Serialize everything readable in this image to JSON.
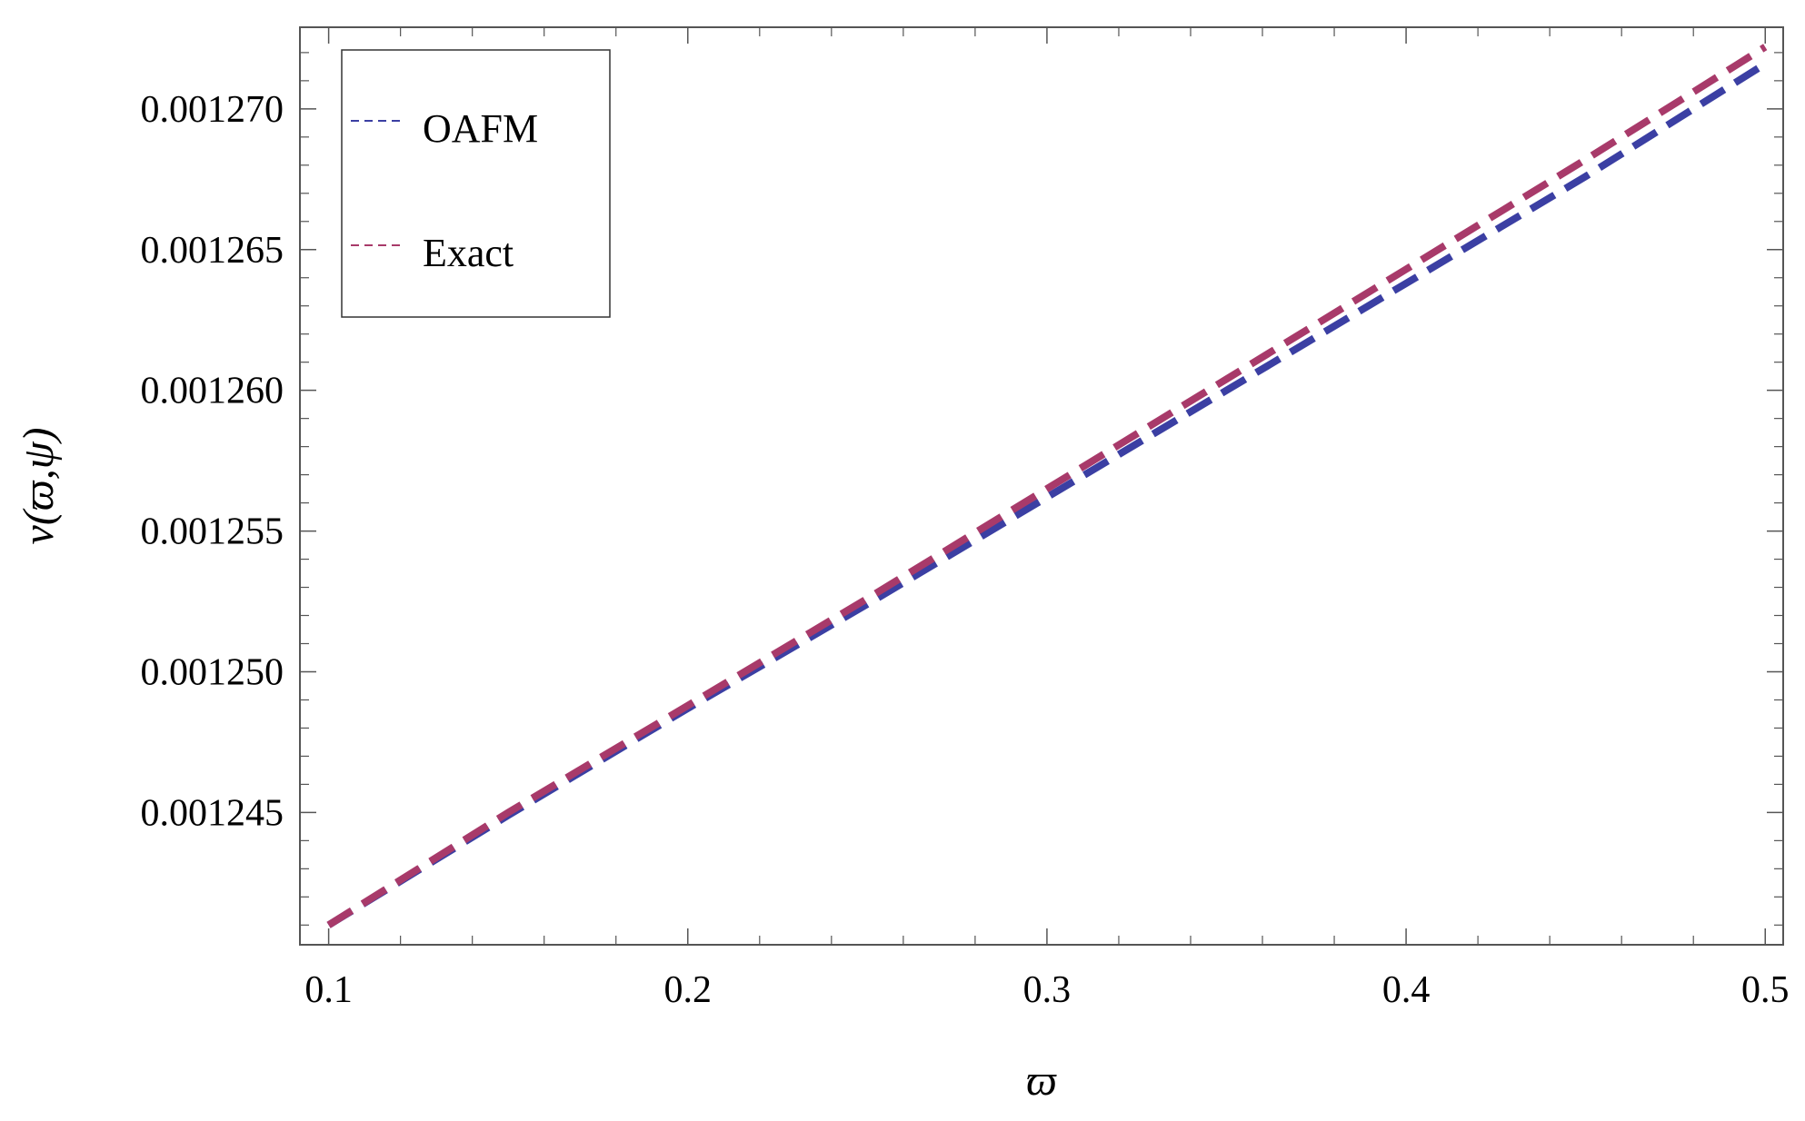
{
  "chart_data": {
    "type": "line",
    "title": "",
    "xlabel": "ϖ",
    "ylabel": "ν(ϖ,ψ)",
    "xlim": [
      0.092,
      0.505
    ],
    "ylim": [
      0.0012403,
      0.0012729
    ],
    "grid": false,
    "legend_position": "top-left",
    "x_ticks": [
      0.1,
      0.2,
      0.3,
      0.4,
      0.5
    ],
    "x_tick_labels": [
      "0.1",
      "0.2",
      "0.3",
      "0.4",
      "0.5"
    ],
    "y_ticks": [
      0.001245,
      0.00125,
      0.001255,
      0.00126,
      0.001265,
      0.00127
    ],
    "y_tick_labels": [
      "0.001245",
      "0.001250",
      "0.001255",
      "0.001260",
      "0.001265",
      "0.001270"
    ],
    "x": [
      0.1,
      0.15,
      0.2,
      0.25,
      0.3,
      0.35,
      0.4,
      0.45,
      0.5
    ],
    "series": [
      {
        "name": "OAFM",
        "color": "#3b3fa3",
        "values": [
          0.001241,
          0.0012449,
          0.0012487,
          0.0012524,
          0.0012562,
          0.00126,
          0.0012638,
          0.0012676,
          0.0012716
        ]
      },
      {
        "name": "Exact",
        "color": "#a83a6a",
        "values": [
          0.001241,
          0.001245,
          0.0012488,
          0.0012526,
          0.0012565,
          0.0012604,
          0.0012643,
          0.0012682,
          0.0012722
        ]
      }
    ]
  }
}
